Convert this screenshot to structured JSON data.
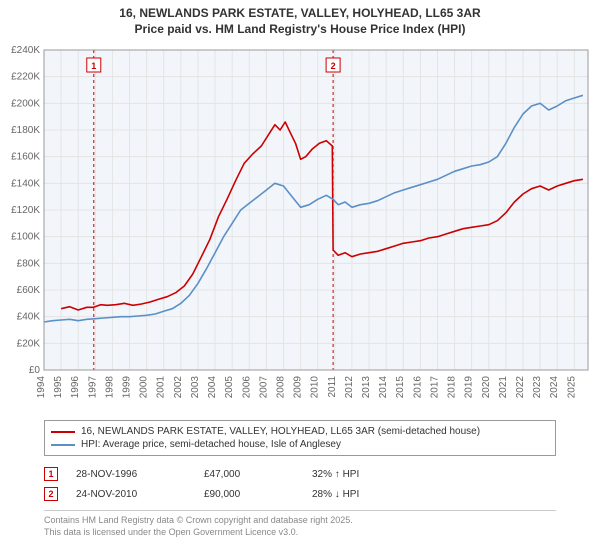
{
  "title_line1": "16, NEWLANDS PARK ESTATE, VALLEY, HOLYHEAD, LL65 3AR",
  "title_line2": "Price paid vs. HM Land Registry's House Price Index (HPI)",
  "chart": {
    "type": "line",
    "background_color": "#ffffff",
    "plot_background_color": "#f2f6fb",
    "grid_color": "#e4e4e4",
    "axis_color": "#999999",
    "xlim": [
      1994,
      2025.8
    ],
    "ylim": [
      0,
      240000
    ],
    "ytick_step": 20000,
    "ytick_labels": [
      "£0",
      "£20K",
      "£40K",
      "£60K",
      "£80K",
      "£100K",
      "£120K",
      "£140K",
      "£160K",
      "£180K",
      "£200K",
      "£220K",
      "£240K"
    ],
    "xticks": [
      1994,
      1995,
      1996,
      1997,
      1998,
      1999,
      2000,
      2001,
      2002,
      2003,
      2004,
      2005,
      2006,
      2007,
      2008,
      2009,
      2010,
      2011,
      2012,
      2013,
      2014,
      2015,
      2016,
      2017,
      2018,
      2019,
      2020,
      2021,
      2022,
      2023,
      2024,
      2025
    ],
    "tick_fontsize": 10,
    "tick_color": "#666666",
    "line_width": 1.6,
    "event_marker_border": "#cc0000",
    "event_marker_bg": "#ffffff",
    "event_marker_text": "#cc0000",
    "event_line_dash": "3,3",
    "series": [
      {
        "name": "property",
        "color": "#cc0000",
        "points": [
          [
            1995.0,
            46000
          ],
          [
            1995.5,
            47500
          ],
          [
            1996.0,
            45000
          ],
          [
            1996.5,
            47000
          ],
          [
            1996.9,
            47000
          ],
          [
            1997.3,
            49000
          ],
          [
            1997.7,
            48500
          ],
          [
            1998.2,
            49000
          ],
          [
            1998.7,
            50000
          ],
          [
            1999.2,
            48500
          ],
          [
            1999.7,
            49500
          ],
          [
            2000.2,
            51000
          ],
          [
            2000.7,
            53000
          ],
          [
            2001.2,
            55000
          ],
          [
            2001.7,
            58000
          ],
          [
            2002.2,
            63000
          ],
          [
            2002.7,
            72000
          ],
          [
            2003.2,
            85000
          ],
          [
            2003.7,
            98000
          ],
          [
            2004.2,
            115000
          ],
          [
            2004.7,
            128000
          ],
          [
            2005.2,
            142000
          ],
          [
            2005.7,
            155000
          ],
          [
            2006.2,
            162000
          ],
          [
            2006.7,
            168000
          ],
          [
            2007.2,
            178000
          ],
          [
            2007.5,
            184000
          ],
          [
            2007.8,
            180000
          ],
          [
            2008.1,
            186000
          ],
          [
            2008.4,
            178000
          ],
          [
            2008.7,
            170000
          ],
          [
            2009.0,
            158000
          ],
          [
            2009.3,
            160000
          ],
          [
            2009.7,
            166000
          ],
          [
            2010.1,
            170000
          ],
          [
            2010.5,
            172000
          ],
          [
            2010.85,
            168000
          ],
          [
            2010.9,
            90000
          ],
          [
            2011.2,
            86000
          ],
          [
            2011.6,
            88000
          ],
          [
            2012.0,
            85000
          ],
          [
            2012.5,
            87000
          ],
          [
            2013.0,
            88000
          ],
          [
            2013.5,
            89000
          ],
          [
            2014.0,
            91000
          ],
          [
            2014.5,
            93000
          ],
          [
            2015.0,
            95000
          ],
          [
            2015.5,
            96000
          ],
          [
            2016.0,
            97000
          ],
          [
            2016.5,
            99000
          ],
          [
            2017.0,
            100000
          ],
          [
            2017.5,
            102000
          ],
          [
            2018.0,
            104000
          ],
          [
            2018.5,
            106000
          ],
          [
            2019.0,
            107000
          ],
          [
            2019.5,
            108000
          ],
          [
            2020.0,
            109000
          ],
          [
            2020.5,
            112000
          ],
          [
            2021.0,
            118000
          ],
          [
            2021.5,
            126000
          ],
          [
            2022.0,
            132000
          ],
          [
            2022.5,
            136000
          ],
          [
            2023.0,
            138000
          ],
          [
            2023.5,
            135000
          ],
          [
            2024.0,
            138000
          ],
          [
            2024.5,
            140000
          ],
          [
            2025.0,
            142000
          ],
          [
            2025.5,
            143000
          ]
        ]
      },
      {
        "name": "hpi",
        "color": "#5b8fc7",
        "points": [
          [
            1994.0,
            36000
          ],
          [
            1994.5,
            37000
          ],
          [
            1995.0,
            37500
          ],
          [
            1995.5,
            38000
          ],
          [
            1996.0,
            37000
          ],
          [
            1996.5,
            38000
          ],
          [
            1997.0,
            38500
          ],
          [
            1997.5,
            39000
          ],
          [
            1998.0,
            39500
          ],
          [
            1998.5,
            40000
          ],
          [
            1999.0,
            40000
          ],
          [
            1999.5,
            40500
          ],
          [
            2000.0,
            41000
          ],
          [
            2000.5,
            42000
          ],
          [
            2001.0,
            44000
          ],
          [
            2001.5,
            46000
          ],
          [
            2002.0,
            50000
          ],
          [
            2002.5,
            56000
          ],
          [
            2003.0,
            65000
          ],
          [
            2003.5,
            76000
          ],
          [
            2004.0,
            88000
          ],
          [
            2004.5,
            100000
          ],
          [
            2005.0,
            110000
          ],
          [
            2005.5,
            120000
          ],
          [
            2006.0,
            125000
          ],
          [
            2006.5,
            130000
          ],
          [
            2007.0,
            135000
          ],
          [
            2007.5,
            140000
          ],
          [
            2008.0,
            138000
          ],
          [
            2008.5,
            130000
          ],
          [
            2009.0,
            122000
          ],
          [
            2009.5,
            124000
          ],
          [
            2010.0,
            128000
          ],
          [
            2010.5,
            131000
          ],
          [
            2010.9,
            128000
          ],
          [
            2011.2,
            124000
          ],
          [
            2011.6,
            126000
          ],
          [
            2012.0,
            122000
          ],
          [
            2012.5,
            124000
          ],
          [
            2013.0,
            125000
          ],
          [
            2013.5,
            127000
          ],
          [
            2014.0,
            130000
          ],
          [
            2014.5,
            133000
          ],
          [
            2015.0,
            135000
          ],
          [
            2015.5,
            137000
          ],
          [
            2016.0,
            139000
          ],
          [
            2016.5,
            141000
          ],
          [
            2017.0,
            143000
          ],
          [
            2017.5,
            146000
          ],
          [
            2018.0,
            149000
          ],
          [
            2018.5,
            151000
          ],
          [
            2019.0,
            153000
          ],
          [
            2019.5,
            154000
          ],
          [
            2020.0,
            156000
          ],
          [
            2020.5,
            160000
          ],
          [
            2021.0,
            170000
          ],
          [
            2021.5,
            182000
          ],
          [
            2022.0,
            192000
          ],
          [
            2022.5,
            198000
          ],
          [
            2023.0,
            200000
          ],
          [
            2023.5,
            195000
          ],
          [
            2024.0,
            198000
          ],
          [
            2024.5,
            202000
          ],
          [
            2025.0,
            204000
          ],
          [
            2025.5,
            206000
          ]
        ]
      }
    ],
    "events": [
      {
        "id": "1",
        "x": 1996.91
      },
      {
        "id": "2",
        "x": 2010.9
      }
    ]
  },
  "legend": {
    "items": [
      {
        "color": "#cc0000",
        "label": "16, NEWLANDS PARK ESTATE, VALLEY, HOLYHEAD, LL65 3AR (semi-detached house)"
      },
      {
        "color": "#5b8fc7",
        "label": "HPI: Average price, semi-detached house, Isle of Anglesey"
      }
    ]
  },
  "sales": [
    {
      "id": "1",
      "date": "28-NOV-1996",
      "price": "£47,000",
      "delta": "32% ↑ HPI",
      "marker_color": "#cc0000"
    },
    {
      "id": "2",
      "date": "24-NOV-2010",
      "price": "£90,000",
      "delta": "28% ↓ HPI",
      "marker_color": "#cc0000"
    }
  ],
  "footer_line1": "Contains HM Land Registry data © Crown copyright and database right 2025.",
  "footer_line2": "This data is licensed under the Open Government Licence v3.0."
}
